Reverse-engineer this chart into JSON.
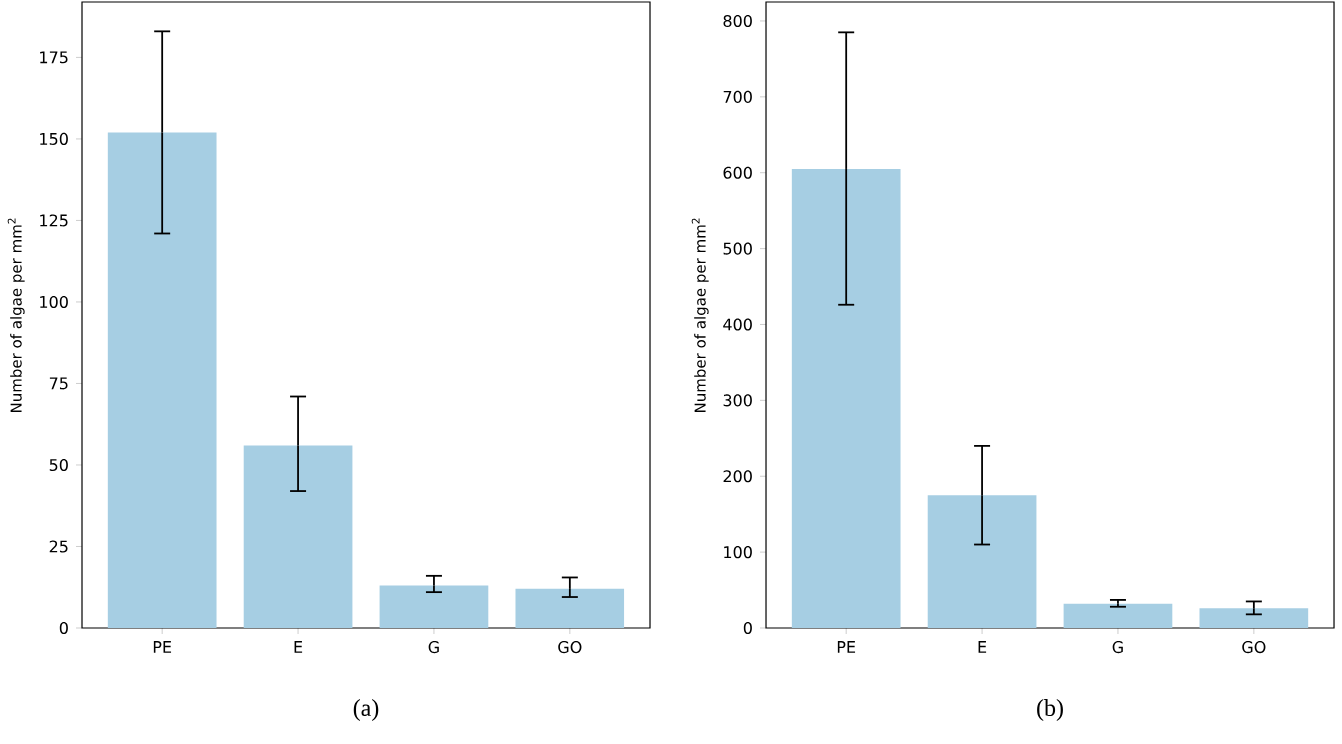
{
  "chart_data": [
    {
      "type": "bar",
      "categories": [
        "PE",
        "E",
        "G",
        "GO"
      ],
      "values": [
        152,
        56,
        13,
        12
      ],
      "errors": [
        [
          121,
          183
        ],
        [
          42,
          71
        ],
        [
          11,
          16
        ],
        [
          9.5,
          15.5
        ]
      ],
      "color": "#a6cee3",
      "ylabel": "Number of algae per mm$^{2}$",
      "ylim": [
        0,
        192
      ],
      "yticks": [
        0,
        25,
        50,
        75,
        100,
        125,
        150,
        175
      ],
      "annotations": [
        "(a)"
      ]
    },
    {
      "type": "bar",
      "categories": [
        "PE",
        "E",
        "G",
        "GO"
      ],
      "values": [
        605,
        175,
        32,
        26
      ],
      "errors": [
        [
          426,
          785
        ],
        [
          110,
          240
        ],
        [
          28,
          37
        ],
        [
          18,
          35
        ]
      ],
      "color": "#a6cee3",
      "ylabel": "Number of algae per mm$^{2}$",
      "ylim": [
        0,
        825
      ],
      "yticks": [
        0,
        100,
        200,
        300,
        400,
        500,
        600,
        700,
        800
      ],
      "annotations": [
        "(b)"
      ]
    }
  ]
}
